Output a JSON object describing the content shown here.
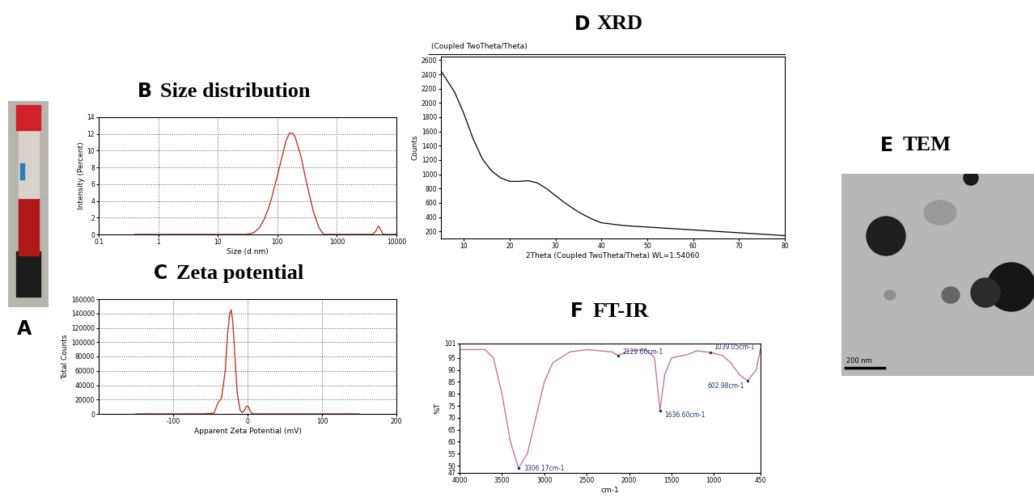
{
  "chart_data": [
    {
      "type": "line",
      "panel": "B",
      "title": "Size distribution",
      "x_label": "Size (d.nm)",
      "y_label": "Intensity (Percent)",
      "log": "x",
      "grid": true,
      "color": "#c0392b",
      "x": [
        0.4,
        1,
        10,
        30,
        40,
        50,
        60,
        70,
        80,
        90,
        100,
        120,
        140,
        160,
        180,
        200,
        250,
        300,
        400,
        500,
        600,
        1000,
        3000,
        4000,
        4500,
        5000,
        5500,
        6000,
        8000,
        10000
      ],
      "values": [
        0,
        0,
        0,
        0,
        0.2,
        0.8,
        1.8,
        3,
        4.3,
        5.8,
        7,
        9.3,
        11.2,
        12.1,
        12.1,
        11.6,
        9.3,
        6.6,
        2.8,
        0.8,
        0,
        0,
        0,
        0,
        0.4,
        1,
        0.5,
        0,
        0,
        0
      ],
      "xlim": [
        0.1,
        10000
      ],
      "xticks": [
        0.1,
        1,
        10,
        100,
        1000,
        10000
      ],
      "ylim": [
        0,
        14
      ],
      "yticks": [
        0,
        2,
        4,
        6,
        8,
        10,
        12,
        14
      ]
    },
    {
      "type": "line",
      "panel": "C",
      "title": "Zeta potential",
      "x_label": "Apparent Zeta Potential (mV)",
      "y_label": "Total Counts",
      "grid": true,
      "color": "#c0392b",
      "x": [
        -150,
        -60,
        -45,
        -40,
        -35,
        -30,
        -27,
        -24,
        -22,
        -20,
        -17,
        -14,
        -10,
        -7,
        -4,
        -2,
        0,
        2,
        4,
        7,
        150
      ],
      "values": [
        0,
        0,
        1000,
        15000,
        22000,
        60000,
        110000,
        140000,
        145000,
        130000,
        80000,
        30000,
        5000,
        2000,
        5000,
        10000,
        11000,
        8000,
        3000,
        0,
        0
      ],
      "xlim": [
        -200,
        200
      ],
      "xticks": [
        -100,
        0,
        100,
        200
      ],
      "ylim": [
        0,
        160000
      ],
      "yticks": [
        0,
        20000,
        40000,
        60000,
        80000,
        100000,
        120000,
        140000,
        160000
      ]
    },
    {
      "type": "line",
      "panel": "D",
      "title": "XRD",
      "subtitle": "(Coupled TwoTheta/Theta)",
      "x_label": "2Theta (Coupled TwoTheta/Theta) WL=1.54060",
      "y_label": "Counts",
      "grid": false,
      "color": "#000000",
      "x": [
        5,
        6,
        8,
        10,
        12,
        14,
        16,
        18,
        20,
        22,
        24,
        26,
        28,
        30,
        32,
        35,
        38,
        40,
        45,
        50,
        55,
        60,
        65,
        70,
        75,
        80
      ],
      "values": [
        2450,
        2350,
        2150,
        1850,
        1500,
        1220,
        1050,
        950,
        900,
        900,
        910,
        880,
        800,
        700,
        600,
        470,
        370,
        320,
        280,
        260,
        240,
        220,
        200,
        180,
        160,
        140
      ],
      "xlim": [
        5,
        80
      ],
      "xticks": [
        10,
        20,
        30,
        40,
        50,
        60,
        70,
        80
      ],
      "ylim": [
        100,
        2650
      ],
      "yticks": [
        200,
        400,
        600,
        800,
        1000,
        1200,
        1400,
        1600,
        1800,
        2000,
        2200,
        2400,
        2600
      ]
    },
    {
      "type": "line",
      "panel": "F",
      "title": "FT-IR",
      "x_label": "cm-1",
      "y_label": "%T",
      "grid": false,
      "color": "#c9739b",
      "x": [
        4000,
        3700,
        3600,
        3500,
        3400,
        3306.17,
        3200,
        3100,
        3000,
        2900,
        2700,
        2500,
        2200,
        2129.66,
        2000,
        1800,
        1700,
        1636.6,
        1580,
        1500,
        1300,
        1200,
        1100,
        1039.05,
        900,
        800,
        700,
        602.98,
        500,
        450
      ],
      "values": [
        98.5,
        98.5,
        95,
        80,
        60,
        49,
        55,
        70,
        85,
        93,
        97.5,
        98.5,
        97.5,
        96,
        98,
        98.5,
        95,
        73,
        88,
        95,
        96.5,
        98,
        97.5,
        97.3,
        96,
        93,
        88,
        85.5,
        90,
        99
      ],
      "xlim": [
        4000,
        450
      ],
      "xticks": [
        4000,
        3500,
        3000,
        2500,
        2000,
        1500,
        1000,
        450
      ],
      "ylim": [
        47,
        101
      ],
      "yticks": [
        47,
        50,
        55,
        60,
        65,
        70,
        75,
        80,
        85,
        90,
        95,
        101
      ],
      "annotations": [
        {
          "x": 3306.17,
          "y": 49,
          "text": "3306.17cm-1"
        },
        {
          "x": 2129.66,
          "y": 96,
          "text": "2129.66cm-1"
        },
        {
          "x": 1636.6,
          "y": 73,
          "text": "1636.60cm-1"
        },
        {
          "x": 1039.05,
          "y": 97.3,
          "text": "1039.05cm-1"
        },
        {
          "x": 602.98,
          "y": 85.5,
          "text": "602.98cm-1"
        }
      ]
    }
  ],
  "images": [
    {
      "panel": "A"
    },
    {
      "panel": "E",
      "title": "TEM",
      "scale_bar": "200 nm"
    }
  ]
}
